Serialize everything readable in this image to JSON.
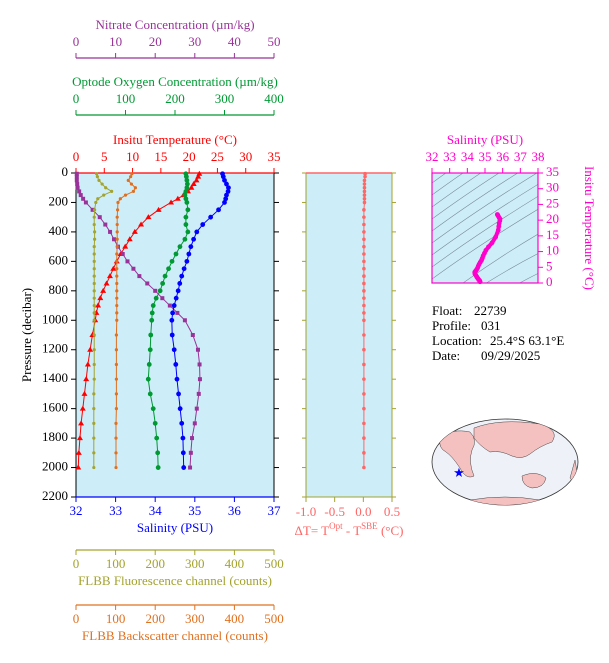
{
  "chart_data": [
    {
      "type": "profile",
      "ylabel": "Pressure (decibar)",
      "ylim": [
        0,
        2200
      ],
      "yticks": [
        0,
        200,
        400,
        600,
        800,
        1000,
        1200,
        1400,
        1600,
        1800,
        2000,
        2200
      ],
      "pressure": [
        5,
        25,
        50,
        75,
        100,
        125,
        150,
        175,
        200,
        250,
        300,
        350,
        400,
        450,
        500,
        550,
        600,
        650,
        700,
        750,
        800,
        850,
        900,
        950,
        1000,
        1100,
        1200,
        1300,
        1400,
        1500,
        1600,
        1700,
        1800,
        1900,
        2000
      ],
      "background": "#cdeef8",
      "axes": [
        {
          "name": "Insitu Temperature (°C)",
          "position": "top",
          "color": "#ff0000",
          "marker": "triangle",
          "xlim": [
            0,
            35
          ],
          "xticks": [
            0,
            5,
            10,
            15,
            20,
            25,
            30,
            35
          ],
          "values": [
            21.8,
            21.6,
            21.3,
            20.8,
            20.4,
            19.8,
            19.0,
            18.0,
            16.8,
            14.6,
            12.8,
            11.5,
            10.4,
            9.5,
            8.7,
            7.9,
            7.2,
            6.6,
            6.0,
            5.4,
            4.8,
            4.3,
            3.9,
            3.6,
            3.4,
            2.9,
            2.5,
            2.1,
            1.8,
            1.5,
            1.2,
            0.9,
            0.7,
            0.5,
            0.4
          ]
        },
        {
          "name": "Optode Oxygen Concentration (µm/kg)",
          "position": "top",
          "color": "#009933",
          "marker": "circle",
          "xlim": [
            0,
            400
          ],
          "xticks": [
            0,
            100,
            200,
            300,
            400
          ],
          "values": [
            222,
            223,
            224,
            225,
            224,
            222,
            220,
            222,
            224,
            226,
            222,
            222,
            226,
            220,
            210,
            202,
            194,
            187,
            180,
            175,
            170,
            162,
            156,
            154,
            153,
            151,
            150,
            148,
            146,
            150,
            156,
            160,
            163,
            165,
            166
          ]
        },
        {
          "name": "Nitrate Concentration (µm/kg)",
          "position": "top",
          "color": "#993399",
          "marker": "square",
          "xlim": [
            0,
            50
          ],
          "xticks": [
            0,
            10,
            20,
            30,
            40,
            50
          ],
          "values": [
            0.2,
            0.2,
            0.2,
            0.3,
            0.4,
            0.8,
            1.2,
            1.8,
            2.5,
            4.2,
            6.0,
            7.4,
            8.6,
            9.6,
            10.6,
            11.8,
            13.0,
            14.5,
            16.0,
            18.0,
            20.0,
            21.8,
            23.7,
            25.6,
            27.5,
            29.5,
            30.8,
            31.2,
            31.3,
            31.0,
            30.5,
            30.0,
            29.3,
            29.0,
            28.8
          ]
        },
        {
          "name": "Salinity (PSU)",
          "position": "bottom",
          "color": "#0000ff",
          "marker": "circle",
          "xlim": [
            32,
            37
          ],
          "xticks": [
            32,
            33,
            34,
            35,
            36,
            37
          ],
          "values": [
            35.7,
            35.72,
            35.75,
            35.8,
            35.85,
            35.84,
            35.8,
            35.78,
            35.75,
            35.6,
            35.4,
            35.2,
            35.05,
            34.97,
            34.9,
            34.85,
            34.8,
            34.73,
            34.67,
            34.62,
            34.58,
            34.53,
            34.48,
            34.44,
            34.42,
            34.43,
            34.48,
            34.52,
            34.55,
            34.59,
            34.63,
            34.67,
            34.7,
            34.71,
            34.72
          ]
        },
        {
          "name": "FLBB Fluorescence channel (counts)",
          "position": "bottom",
          "color": "#a3a32e",
          "marker": "dot",
          "xlim": [
            0,
            500
          ],
          "xticks": [
            0,
            100,
            200,
            300,
            400,
            500
          ],
          "values": [
            52,
            54,
            58,
            66,
            75,
            90,
            70,
            55,
            50,
            47,
            46,
            46,
            47,
            47,
            46,
            46,
            46,
            46,
            46,
            46,
            46,
            46,
            46,
            46,
            46,
            46,
            46,
            46,
            46,
            45,
            45,
            45,
            45,
            45,
            45
          ]
        },
        {
          "name": "FLBB Backscatter channel (counts)",
          "position": "bottom",
          "color": "#e0701f",
          "marker": "dot",
          "xlim": [
            0,
            500
          ],
          "xticks": [
            0,
            100,
            200,
            300,
            400,
            500
          ],
          "values": [
            141,
            138,
            132,
            140,
            150,
            145,
            125,
            112,
            106,
            105,
            104,
            104,
            104,
            104,
            104,
            103,
            103,
            103,
            103,
            103,
            103,
            103,
            103,
            103,
            103,
            102,
            102,
            102,
            102,
            102,
            102,
            101,
            101,
            101,
            101
          ]
        }
      ]
    },
    {
      "type": "difference",
      "xlabel": [
        "ΔT= T",
        "Opt",
        " - T",
        "SBE",
        " (°C)"
      ],
      "color": "#ff6666",
      "axis_color": "#a3a32e",
      "xlim": [
        -1.0,
        0.5
      ],
      "xticks": [
        {
          "value": -1.0,
          "label": "-1.0"
        },
        {
          "value": -0.5,
          "label": "-0.5"
        },
        {
          "value": 0,
          "label": "0.0"
        },
        0.5
      ],
      "values": [
        0.03,
        0.03,
        0.02,
        0.02,
        0.02,
        0.02,
        0.02,
        0.02,
        0.02,
        0.01,
        0.01,
        0.01,
        0.01,
        0.01,
        0.01,
        0.01,
        0.01,
        0.01,
        0.01,
        0.01,
        0.01,
        0.01,
        0.01,
        0.01,
        0.01,
        0.01,
        0.01,
        0.01,
        0.01,
        0.01,
        0.01,
        0.01,
        0.01,
        0.01,
        0.01
      ]
    },
    {
      "type": "ts",
      "title": "Salinity (PSU)",
      "ylabel": "Insitu Temperature (°C)",
      "color": "#ff00cc",
      "xlim": [
        32,
        38
      ],
      "xticks": [
        32,
        33,
        34,
        35,
        36,
        37,
        38
      ],
      "ylim": [
        0,
        35
      ],
      "yticks": [
        0,
        5,
        10,
        15,
        20,
        25,
        30,
        35
      ]
    }
  ],
  "float_info": [
    {
      "label": "Float:",
      "value": "22739"
    },
    {
      "label": "Profile:",
      "value": "031"
    },
    {
      "label": "Location:",
      "value": "25.4°S  63.1°E"
    },
    {
      "label": "Date:",
      "value": "09/29/2025"
    }
  ]
}
